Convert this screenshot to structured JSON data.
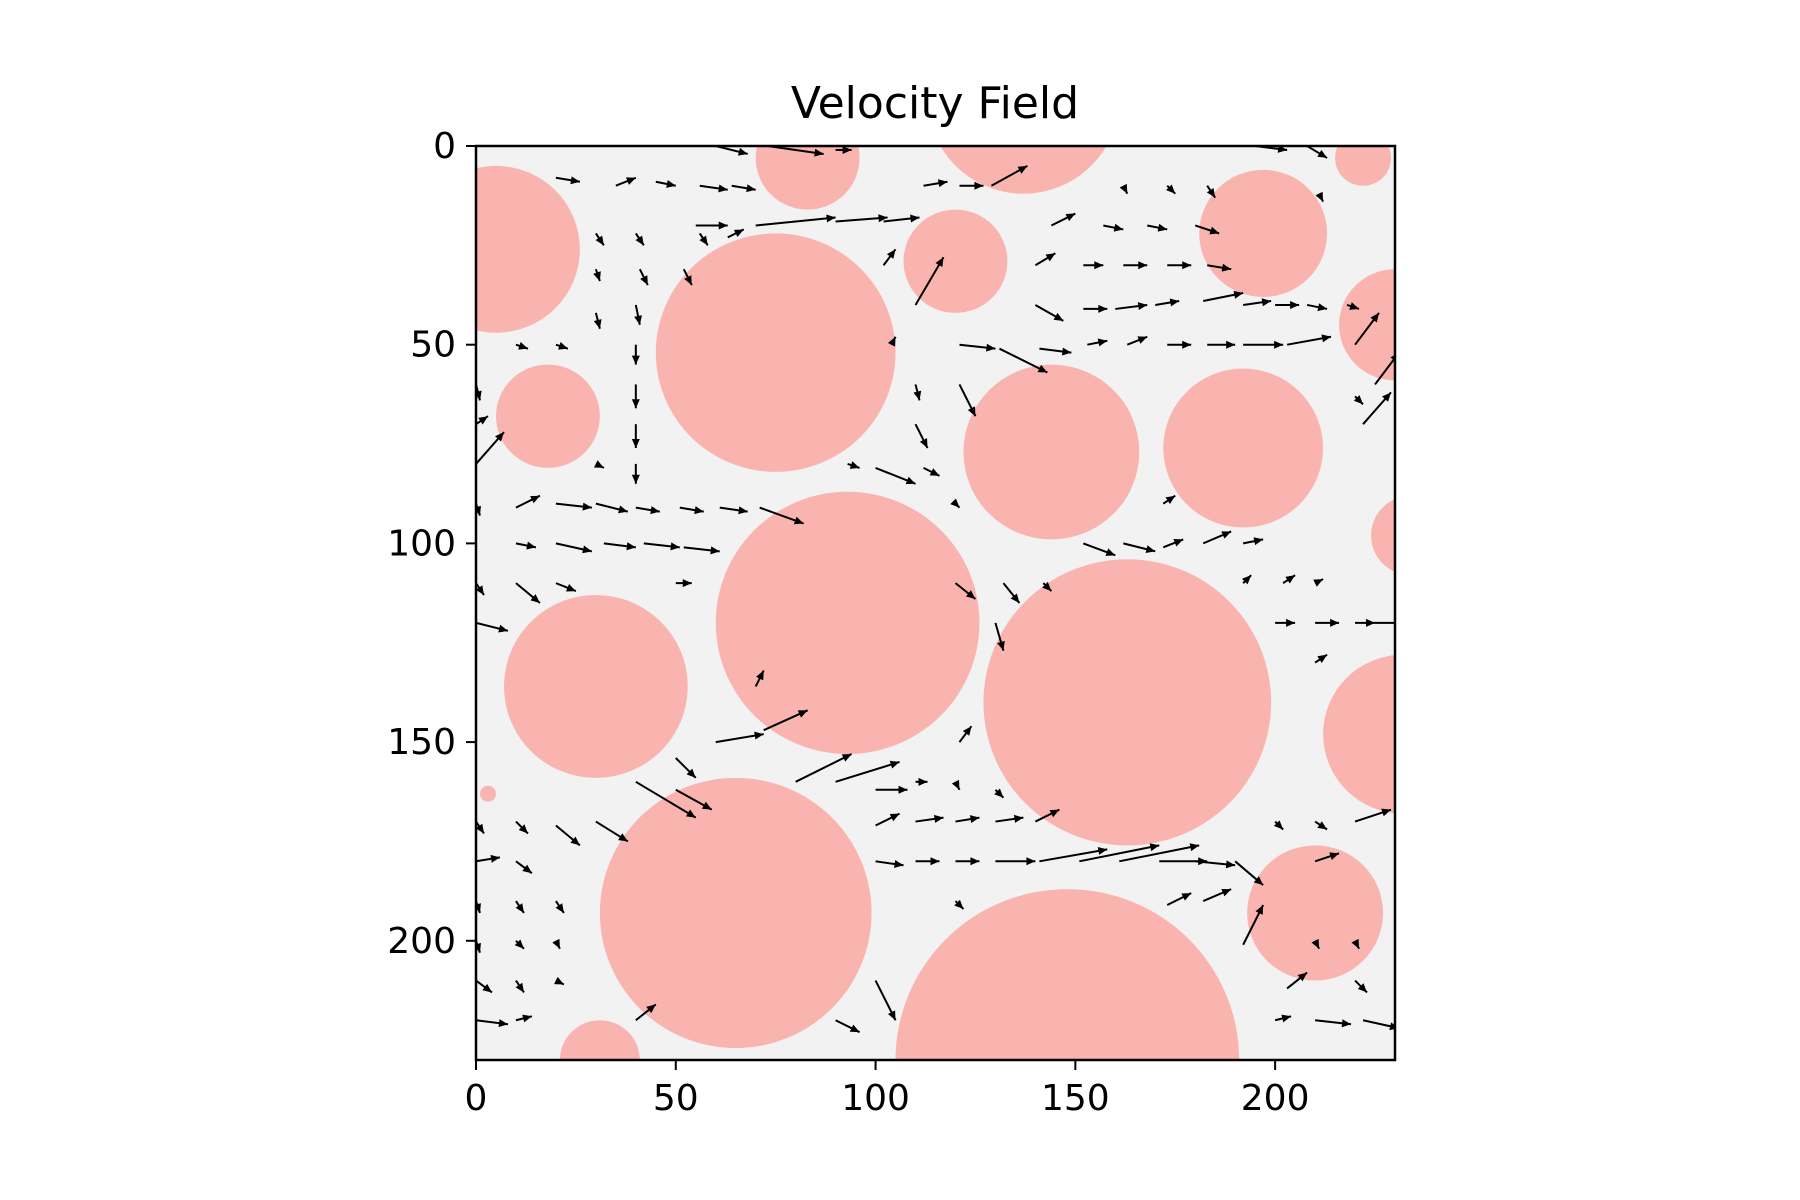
{
  "chart_data": {
    "type": "quiver",
    "title": "Velocity Field",
    "xlabel": "",
    "ylabel": "",
    "xlim": [
      0,
      230
    ],
    "ylim": [
      230,
      0
    ],
    "y_axis_inverted": true,
    "x_ticks": [
      0,
      50,
      100,
      150,
      200
    ],
    "y_ticks": [
      0,
      50,
      100,
      150,
      200
    ],
    "x_tick_labels": [
      "0",
      "50",
      "100",
      "150",
      "200"
    ],
    "y_tick_labels": [
      "0",
      "50",
      "100",
      "150",
      "200"
    ],
    "grid": false,
    "background_color": "#f2f2f2",
    "obstacle_color": "#fab4af",
    "arrow_color": "#000000",
    "obstacles": [
      {
        "cx": 5,
        "cy": 26,
        "r": 21
      },
      {
        "cx": 18,
        "cy": 68,
        "r": 13
      },
      {
        "cx": 30,
        "cy": 136,
        "r": 23
      },
      {
        "cx": 75,
        "cy": 52,
        "r": 30
      },
      {
        "cx": 93,
        "cy": 120,
        "r": 33
      },
      {
        "cx": 65,
        "cy": 193,
        "r": 34
      },
      {
        "cx": 83,
        "cy": 3,
        "r": 13
      },
      {
        "cx": 137,
        "cy": -12,
        "r": 24
      },
      {
        "cx": 120,
        "cy": 29,
        "r": 13
      },
      {
        "cx": 144,
        "cy": 77,
        "r": 22
      },
      {
        "cx": 163,
        "cy": 140,
        "r": 36
      },
      {
        "cx": 148,
        "cy": 230,
        "r": 43
      },
      {
        "cx": 192,
        "cy": 76,
        "r": 20
      },
      {
        "cx": 197,
        "cy": 22,
        "r": 16
      },
      {
        "cx": 222,
        "cy": 3,
        "r": 7
      },
      {
        "cx": 230,
        "cy": 45,
        "r": 14
      },
      {
        "cx": 234,
        "cy": 98,
        "r": 10
      },
      {
        "cx": 232,
        "cy": 148,
        "r": 20
      },
      {
        "cx": 210,
        "cy": 193,
        "r": 17
      },
      {
        "cx": 31,
        "cy": 230,
        "r": 10
      },
      {
        "cx": 3,
        "cy": 163,
        "r": 2
      }
    ],
    "vectors": [
      {
        "x": 60,
        "y": 0,
        "u": 8,
        "v": 2
      },
      {
        "x": 73,
        "y": 0,
        "u": 14,
        "v": 2
      },
      {
        "x": 90,
        "y": 1,
        "u": 4,
        "v": 0
      },
      {
        "x": 195,
        "y": 0,
        "u": 8,
        "v": 1
      },
      {
        "x": 208,
        "y": 0,
        "u": 5,
        "v": 3
      },
      {
        "x": 20,
        "y": 8,
        "u": 6,
        "v": 1
      },
      {
        "x": 35,
        "y": 10,
        "u": 5,
        "v": -2
      },
      {
        "x": 45,
        "y": 9,
        "u": 5,
        "v": 1
      },
      {
        "x": 56,
        "y": 10,
        "u": 7,
        "v": 1
      },
      {
        "x": 64,
        "y": 10,
        "u": 6,
        "v": 1
      },
      {
        "x": 112,
        "y": 10,
        "u": 6,
        "v": -1
      },
      {
        "x": 121,
        "y": 10,
        "u": 6,
        "v": 0
      },
      {
        "x": 129,
        "y": 10,
        "u": 9,
        "v": -5
      },
      {
        "x": 162,
        "y": 10,
        "u": 1,
        "v": 2
      },
      {
        "x": 173,
        "y": 10,
        "u": 2,
        "v": 2
      },
      {
        "x": 183,
        "y": 10,
        "u": 2,
        "v": 3
      },
      {
        "x": 211,
        "y": 12,
        "u": 1,
        "v": 2
      },
      {
        "x": 55,
        "y": 20,
        "u": 8,
        "v": 0
      },
      {
        "x": 70,
        "y": 20,
        "u": 20,
        "v": -2
      },
      {
        "x": 90,
        "y": 19,
        "u": 13,
        "v": -1
      },
      {
        "x": 102,
        "y": 19,
        "u": 9,
        "v": -1
      },
      {
        "x": 144,
        "y": 20,
        "u": 6,
        "v": -3
      },
      {
        "x": 157,
        "y": 20,
        "u": 5,
        "v": 1
      },
      {
        "x": 168,
        "y": 20,
        "u": 5,
        "v": 1
      },
      {
        "x": 180,
        "y": 20,
        "u": 6,
        "v": 2
      },
      {
        "x": 30,
        "y": 22,
        "u": 2,
        "v": 3
      },
      {
        "x": 40,
        "y": 22,
        "u": 2,
        "v": 3
      },
      {
        "x": 56,
        "y": 22,
        "u": 2,
        "v": 3
      },
      {
        "x": 63,
        "y": 23,
        "u": 4,
        "v": -2
      },
      {
        "x": 102,
        "y": 30,
        "u": 3,
        "v": -4
      },
      {
        "x": 110,
        "y": 40,
        "u": 7,
        "v": -12
      },
      {
        "x": 140,
        "y": 30,
        "u": 5,
        "v": -3
      },
      {
        "x": 152,
        "y": 30,
        "u": 5,
        "v": 0
      },
      {
        "x": 162,
        "y": 30,
        "u": 6,
        "v": 0
      },
      {
        "x": 173,
        "y": 30,
        "u": 6,
        "v": 0
      },
      {
        "x": 183,
        "y": 30,
        "u": 6,
        "v": 1
      },
      {
        "x": 30,
        "y": 31,
        "u": 1,
        "v": 3
      },
      {
        "x": 41,
        "y": 31,
        "u": 2,
        "v": 4
      },
      {
        "x": 52,
        "y": 31,
        "u": 2,
        "v": 4
      },
      {
        "x": 30,
        "y": 42,
        "u": 1,
        "v": 4
      },
      {
        "x": 40,
        "y": 40,
        "u": 1,
        "v": 5
      },
      {
        "x": 140,
        "y": 40,
        "u": 7,
        "v": 4
      },
      {
        "x": 152,
        "y": 41,
        "u": 6,
        "v": 0
      },
      {
        "x": 160,
        "y": 41,
        "u": 8,
        "v": -1
      },
      {
        "x": 170,
        "y": 40,
        "u": 6,
        "v": -1
      },
      {
        "x": 182,
        "y": 39,
        "u": 10,
        "v": -2
      },
      {
        "x": 192,
        "y": 40,
        "u": 7,
        "v": -1
      },
      {
        "x": 200,
        "y": 40,
        "u": 6,
        "v": 0
      },
      {
        "x": 208,
        "y": 40,
        "u": 5,
        "v": 1
      },
      {
        "x": 218,
        "y": 40,
        "u": 3,
        "v": 1
      },
      {
        "x": 220,
        "y": 50,
        "u": 6,
        "v": -8
      },
      {
        "x": 225,
        "y": 60,
        "u": 6,
        "v": -8
      },
      {
        "x": 10,
        "y": 50,
        "u": 3,
        "v": 1
      },
      {
        "x": 20,
        "y": 50,
        "u": 3,
        "v": 1
      },
      {
        "x": 40,
        "y": 50,
        "u": 0,
        "v": 5
      },
      {
        "x": 104,
        "y": 50,
        "u": 1,
        "v": -2
      },
      {
        "x": 121,
        "y": 50,
        "u": 9,
        "v": 1
      },
      {
        "x": 131,
        "y": 51,
        "u": 12,
        "v": 6
      },
      {
        "x": 141,
        "y": 51,
        "u": 8,
        "v": 1
      },
      {
        "x": 153,
        "y": 50,
        "u": 5,
        "v": -1
      },
      {
        "x": 163,
        "y": 50,
        "u": 5,
        "v": -2
      },
      {
        "x": 173,
        "y": 50,
        "u": 6,
        "v": 0
      },
      {
        "x": 183,
        "y": 50,
        "u": 7,
        "v": 0
      },
      {
        "x": 192,
        "y": 50,
        "u": 10,
        "v": 0
      },
      {
        "x": 203,
        "y": 50,
        "u": 11,
        "v": -2
      },
      {
        "x": 0,
        "y": 60,
        "u": 1,
        "v": 4
      },
      {
        "x": 40,
        "y": 60,
        "u": 0,
        "v": 6
      },
      {
        "x": 110,
        "y": 60,
        "u": 1,
        "v": 4
      },
      {
        "x": 121,
        "y": 60,
        "u": 4,
        "v": 8
      },
      {
        "x": 220,
        "y": 63,
        "u": 2,
        "v": 2
      },
      {
        "x": 222,
        "y": 70,
        "u": 7,
        "v": -8
      },
      {
        "x": 0,
        "y": 80,
        "u": 7,
        "v": -8
      },
      {
        "x": 0,
        "y": 70,
        "u": 3,
        "v": -2
      },
      {
        "x": 40,
        "y": 70,
        "u": 0,
        "v": 6
      },
      {
        "x": 110,
        "y": 70,
        "u": 3,
        "v": 6
      },
      {
        "x": 40,
        "y": 80,
        "u": 0,
        "v": 5
      },
      {
        "x": 30,
        "y": 80,
        "u": 2,
        "v": 1
      },
      {
        "x": 93,
        "y": 80,
        "u": 3,
        "v": 1
      },
      {
        "x": 100,
        "y": 81,
        "u": 10,
        "v": 4
      },
      {
        "x": 112,
        "y": 81,
        "u": 4,
        "v": 2
      },
      {
        "x": 0,
        "y": 90,
        "u": 1,
        "v": 3
      },
      {
        "x": 10,
        "y": 91,
        "u": 6,
        "v": -3
      },
      {
        "x": 20,
        "y": 90,
        "u": 9,
        "v": 1
      },
      {
        "x": 30,
        "y": 90,
        "u": 8,
        "v": 2
      },
      {
        "x": 40,
        "y": 91,
        "u": 6,
        "v": 1
      },
      {
        "x": 51,
        "y": 91,
        "u": 6,
        "v": 1
      },
      {
        "x": 61,
        "y": 91,
        "u": 7,
        "v": 1
      },
      {
        "x": 71,
        "y": 91,
        "u": 11,
        "v": 4
      },
      {
        "x": 172,
        "y": 90,
        "u": 3,
        "v": -2
      },
      {
        "x": 120,
        "y": 90,
        "u": 1,
        "v": 1
      },
      {
        "x": 10,
        "y": 100,
        "u": 5,
        "v": 1
      },
      {
        "x": 20,
        "y": 100,
        "u": 9,
        "v": 2
      },
      {
        "x": 32,
        "y": 100,
        "u": 8,
        "v": 1
      },
      {
        "x": 42,
        "y": 100,
        "u": 9,
        "v": 1
      },
      {
        "x": 52,
        "y": 101,
        "u": 9,
        "v": 1
      },
      {
        "x": 152,
        "y": 100,
        "u": 8,
        "v": 3
      },
      {
        "x": 162,
        "y": 100,
        "u": 8,
        "v": 2
      },
      {
        "x": 172,
        "y": 101,
        "u": 5,
        "v": -2
      },
      {
        "x": 182,
        "y": 100,
        "u": 7,
        "v": -3
      },
      {
        "x": 192,
        "y": 100,
        "u": 5,
        "v": -1
      },
      {
        "x": 0,
        "y": 110,
        "u": 2,
        "v": 3
      },
      {
        "x": 10,
        "y": 110,
        "u": 6,
        "v": 5
      },
      {
        "x": 20,
        "y": 110,
        "u": 5,
        "v": 2
      },
      {
        "x": 50,
        "y": 110,
        "u": 4,
        "v": 0
      },
      {
        "x": 120,
        "y": 110,
        "u": 5,
        "v": 4
      },
      {
        "x": 132,
        "y": 110,
        "u": 4,
        "v": 5
      },
      {
        "x": 142,
        "y": 110,
        "u": 2,
        "v": 2
      },
      {
        "x": 192,
        "y": 110,
        "u": 2,
        "v": -2
      },
      {
        "x": 202,
        "y": 110,
        "u": 3,
        "v": -2
      },
      {
        "x": 210,
        "y": 110,
        "u": 2,
        "v": -1
      },
      {
        "x": 0,
        "y": 120,
        "u": 8,
        "v": 2
      },
      {
        "x": 130,
        "y": 120,
        "u": 2,
        "v": 7
      },
      {
        "x": 200,
        "y": 120,
        "u": 5,
        "v": 0
      },
      {
        "x": 210,
        "y": 120,
        "u": 6,
        "v": 0
      },
      {
        "x": 220,
        "y": 120,
        "u": 5,
        "v": 0
      },
      {
        "x": 225,
        "y": 120,
        "u": 9,
        "v": 0
      },
      {
        "x": 70,
        "y": 136,
        "u": 2,
        "v": -4
      },
      {
        "x": 210,
        "y": 130,
        "u": 3,
        "v": -2
      },
      {
        "x": 60,
        "y": 150,
        "u": 12,
        "v": -2
      },
      {
        "x": 72,
        "y": 147,
        "u": 11,
        "v": -5
      },
      {
        "x": 121,
        "y": 150,
        "u": 3,
        "v": -4
      },
      {
        "x": 50,
        "y": 154,
        "u": 5,
        "v": 5
      },
      {
        "x": 80,
        "y": 160,
        "u": 14,
        "v": -7
      },
      {
        "x": 90,
        "y": 160,
        "u": 16,
        "v": -5
      },
      {
        "x": 110,
        "y": 160,
        "u": 3,
        "v": 0
      },
      {
        "x": 120,
        "y": 160,
        "u": 1,
        "v": 2
      },
      {
        "x": 40,
        "y": 160,
        "u": 15,
        "v": 9
      },
      {
        "x": 50,
        "y": 162,
        "u": 9,
        "v": 5
      },
      {
        "x": 100,
        "y": 162,
        "u": 8,
        "v": 0
      },
      {
        "x": 130,
        "y": 162,
        "u": 2,
        "v": 2
      },
      {
        "x": 0,
        "y": 170,
        "u": 2,
        "v": 3
      },
      {
        "x": 10,
        "y": 170,
        "u": 3,
        "v": 3
      },
      {
        "x": 100,
        "y": 171,
        "u": 6,
        "v": -3
      },
      {
        "x": 110,
        "y": 170,
        "u": 7,
        "v": -1
      },
      {
        "x": 120,
        "y": 170,
        "u": 6,
        "v": -1
      },
      {
        "x": 130,
        "y": 170,
        "u": 7,
        "v": -1
      },
      {
        "x": 140,
        "y": 170,
        "u": 6,
        "v": -3
      },
      {
        "x": 200,
        "y": 170,
        "u": 2,
        "v": 2
      },
      {
        "x": 210,
        "y": 170,
        "u": 3,
        "v": 2
      },
      {
        "x": 220,
        "y": 170,
        "u": 9,
        "v": -3
      },
      {
        "x": 0,
        "y": 180,
        "u": 6,
        "v": -1
      },
      {
        "x": 10,
        "y": 180,
        "u": 4,
        "v": 3
      },
      {
        "x": 20,
        "y": 171,
        "u": 6,
        "v": 5
      },
      {
        "x": 30,
        "y": 170,
        "u": 8,
        "v": 5
      },
      {
        "x": 100,
        "y": 180,
        "u": 7,
        "v": 1
      },
      {
        "x": 110,
        "y": 180,
        "u": 6,
        "v": 0
      },
      {
        "x": 120,
        "y": 180,
        "u": 6,
        "v": 0
      },
      {
        "x": 130,
        "y": 180,
        "u": 10,
        "v": 0
      },
      {
        "x": 141,
        "y": 180,
        "u": 17,
        "v": -3
      },
      {
        "x": 151,
        "y": 180,
        "u": 20,
        "v": -4
      },
      {
        "x": 161,
        "y": 180,
        "u": 20,
        "v": -4
      },
      {
        "x": 171,
        "y": 180,
        "u": 12,
        "v": 0
      },
      {
        "x": 180,
        "y": 180,
        "u": 10,
        "v": 1
      },
      {
        "x": 190,
        "y": 180,
        "u": 7,
        "v": 6
      },
      {
        "x": 210,
        "y": 180,
        "u": 6,
        "v": -2
      },
      {
        "x": 0,
        "y": 190,
        "u": 1,
        "v": 3
      },
      {
        "x": 10,
        "y": 190,
        "u": 2,
        "v": 3
      },
      {
        "x": 20,
        "y": 190,
        "u": 2,
        "v": 3
      },
      {
        "x": 120,
        "y": 190,
        "u": 2,
        "v": 2
      },
      {
        "x": 173,
        "y": 191,
        "u": 6,
        "v": -3
      },
      {
        "x": 182,
        "y": 190,
        "u": 7,
        "v": -3
      },
      {
        "x": 192,
        "y": 201,
        "u": 5,
        "v": -10
      },
      {
        "x": 0,
        "y": 200,
        "u": 1,
        "v": 3
      },
      {
        "x": 10,
        "y": 200,
        "u": 2,
        "v": 2
      },
      {
        "x": 20,
        "y": 200,
        "u": 1,
        "v": 2
      },
      {
        "x": 210,
        "y": 200,
        "u": 1,
        "v": 2
      },
      {
        "x": 220,
        "y": 200,
        "u": 1,
        "v": 2
      },
      {
        "x": 0,
        "y": 210,
        "u": 4,
        "v": 3
      },
      {
        "x": 10,
        "y": 210,
        "u": 2,
        "v": 3
      },
      {
        "x": 20,
        "y": 210,
        "u": 2,
        "v": 1
      },
      {
        "x": 100,
        "y": 210,
        "u": 5,
        "v": 10
      },
      {
        "x": 203,
        "y": 212,
        "u": 5,
        "v": -4
      },
      {
        "x": 220,
        "y": 210,
        "u": 3,
        "v": 3
      },
      {
        "x": 0,
        "y": 220,
        "u": 8,
        "v": 1
      },
      {
        "x": 10,
        "y": 220,
        "u": 4,
        "v": -1
      },
      {
        "x": 40,
        "y": 220,
        "u": 5,
        "v": -4
      },
      {
        "x": 90,
        "y": 220,
        "u": 6,
        "v": 3
      },
      {
        "x": 200,
        "y": 220,
        "u": 4,
        "v": -1
      },
      {
        "x": 210,
        "y": 220,
        "u": 9,
        "v": 1
      },
      {
        "x": 222,
        "y": 220,
        "u": 9,
        "v": 2
      }
    ]
  }
}
